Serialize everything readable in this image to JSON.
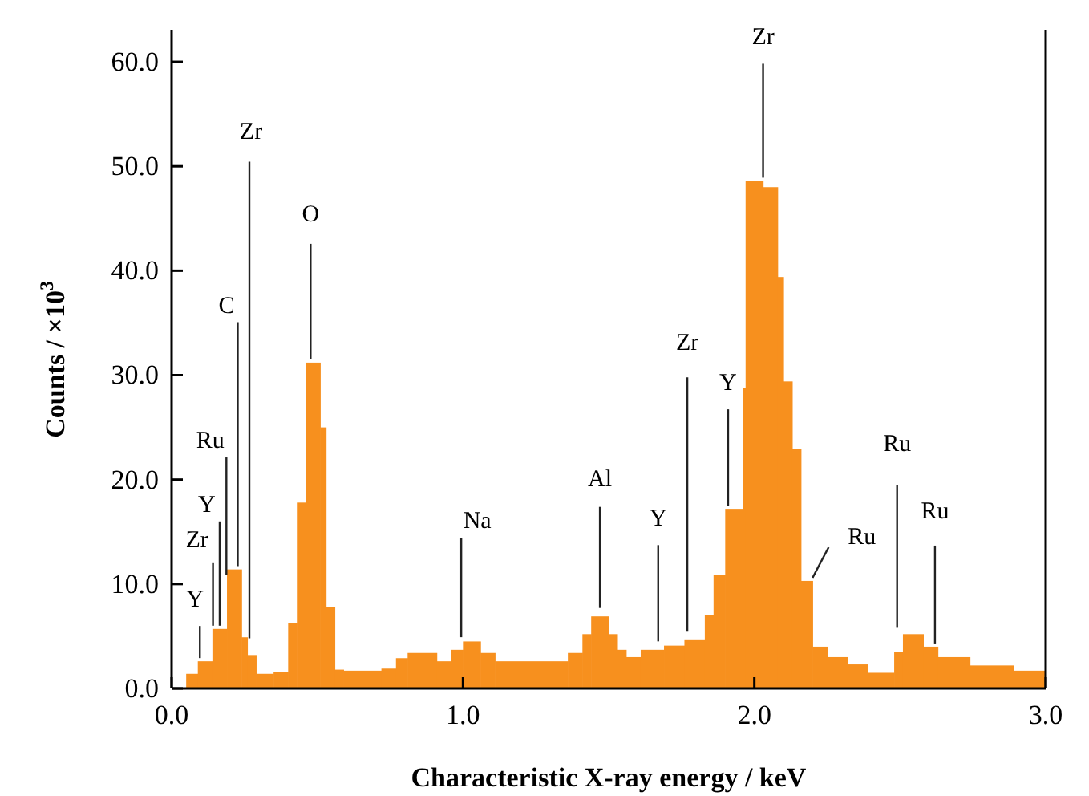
{
  "chart_data": {
    "type": "histogram",
    "xlabel": "Characteristic X-ray energy / keV",
    "ylabel": "Counts / ×10$^{3}$",
    "color": "#f7901e",
    "bins": [
      0.05,
      0.09,
      0.14,
      0.19,
      0.24,
      0.26,
      0.29,
      0.35,
      0.4,
      0.43,
      0.46,
      0.51,
      0.53,
      0.56,
      0.59,
      0.72,
      0.77,
      0.81,
      0.91,
      0.96,
      1.0,
      1.06,
      1.11,
      1.36,
      1.41,
      1.44,
      1.5,
      1.53,
      1.56,
      1.61,
      1.69,
      1.76,
      1.83,
      1.86,
      1.9,
      1.96,
      1.97,
      2.03,
      2.08,
      2.1,
      2.13,
      2.16,
      2.2,
      2.25,
      2.32,
      2.39,
      2.48,
      2.51,
      2.58,
      2.63,
      2.74,
      2.89,
      3.0
    ],
    "values": [
      1.4,
      2.6,
      5.7,
      11.4,
      4.9,
      3.2,
      1.4,
      1.6,
      6.3,
      17.8,
      31.2,
      25,
      7.8,
      1.8,
      1.7,
      1.9,
      2.9,
      3.4,
      2.6,
      3.7,
      4.5,
      3.4,
      2.6,
      3.4,
      5.2,
      6.9,
      5.2,
      3.7,
      3.0,
      3.7,
      4.1,
      4.7,
      7.0,
      10.9,
      17.2,
      28.8,
      48.6,
      48.0,
      39.4,
      29.4,
      22.9,
      10.3,
      4.0,
      3.0,
      2.3,
      1.5,
      3.5,
      5.2,
      4.0,
      3.0,
      2.2,
      1.7
    ],
    "xlim": [
      0,
      3
    ],
    "xticks": [
      {
        "value": 0,
        "label": "0.0"
      },
      {
        "value": 1,
        "label": "1.0"
      },
      {
        "value": 2,
        "label": "2.0"
      },
      {
        "value": 3,
        "label": "3.0"
      }
    ],
    "ylim": [
      0,
      63
    ],
    "yticks": [
      {
        "value": 0,
        "label": "0.0"
      },
      {
        "value": 10,
        "label": "10.0"
      },
      {
        "value": 20,
        "label": "20.0"
      },
      {
        "value": 30,
        "label": "30.0"
      },
      {
        "value": 40,
        "label": "40.0"
      },
      {
        "value": 50,
        "label": "50.0"
      },
      {
        "value": 60,
        "label": "60.0"
      }
    ],
    "grid": false,
    "annotations": [
      {
        "text": "Y",
        "x": 0.097,
        "y": 2.6
      },
      {
        "text": "Zr",
        "x": 0.142,
        "y": 5.7
      },
      {
        "text": "Y",
        "x": 0.165,
        "y": 5.7
      },
      {
        "text": "Ru",
        "x": 0.188,
        "y": 10.6
      },
      {
        "text": "C",
        "x": 0.227,
        "y": 11.4
      },
      {
        "text": "Zr",
        "x": 0.267,
        "y": 4.5
      },
      {
        "text": "O",
        "x": 0.477,
        "y": 31.2
      },
      {
        "text": "Na",
        "x": 0.994,
        "y": 4.6
      },
      {
        "text": "Al",
        "x": 1.47,
        "y": 7.4
      },
      {
        "text": "Y",
        "x": 1.67,
        "y": 4.2
      },
      {
        "text": "Zr",
        "x": 1.77,
        "y": 5.2
      },
      {
        "text": "Y",
        "x": 1.91,
        "y": 17.2
      },
      {
        "text": "Zr",
        "x": 2.03,
        "y": 48.6
      },
      {
        "text": "Ru",
        "x": 2.2,
        "y": 10.3
      },
      {
        "text": "Ru",
        "x": 2.49,
        "y": 5.5
      },
      {
        "text": "Ru",
        "x": 2.62,
        "y": 4.0
      }
    ]
  }
}
